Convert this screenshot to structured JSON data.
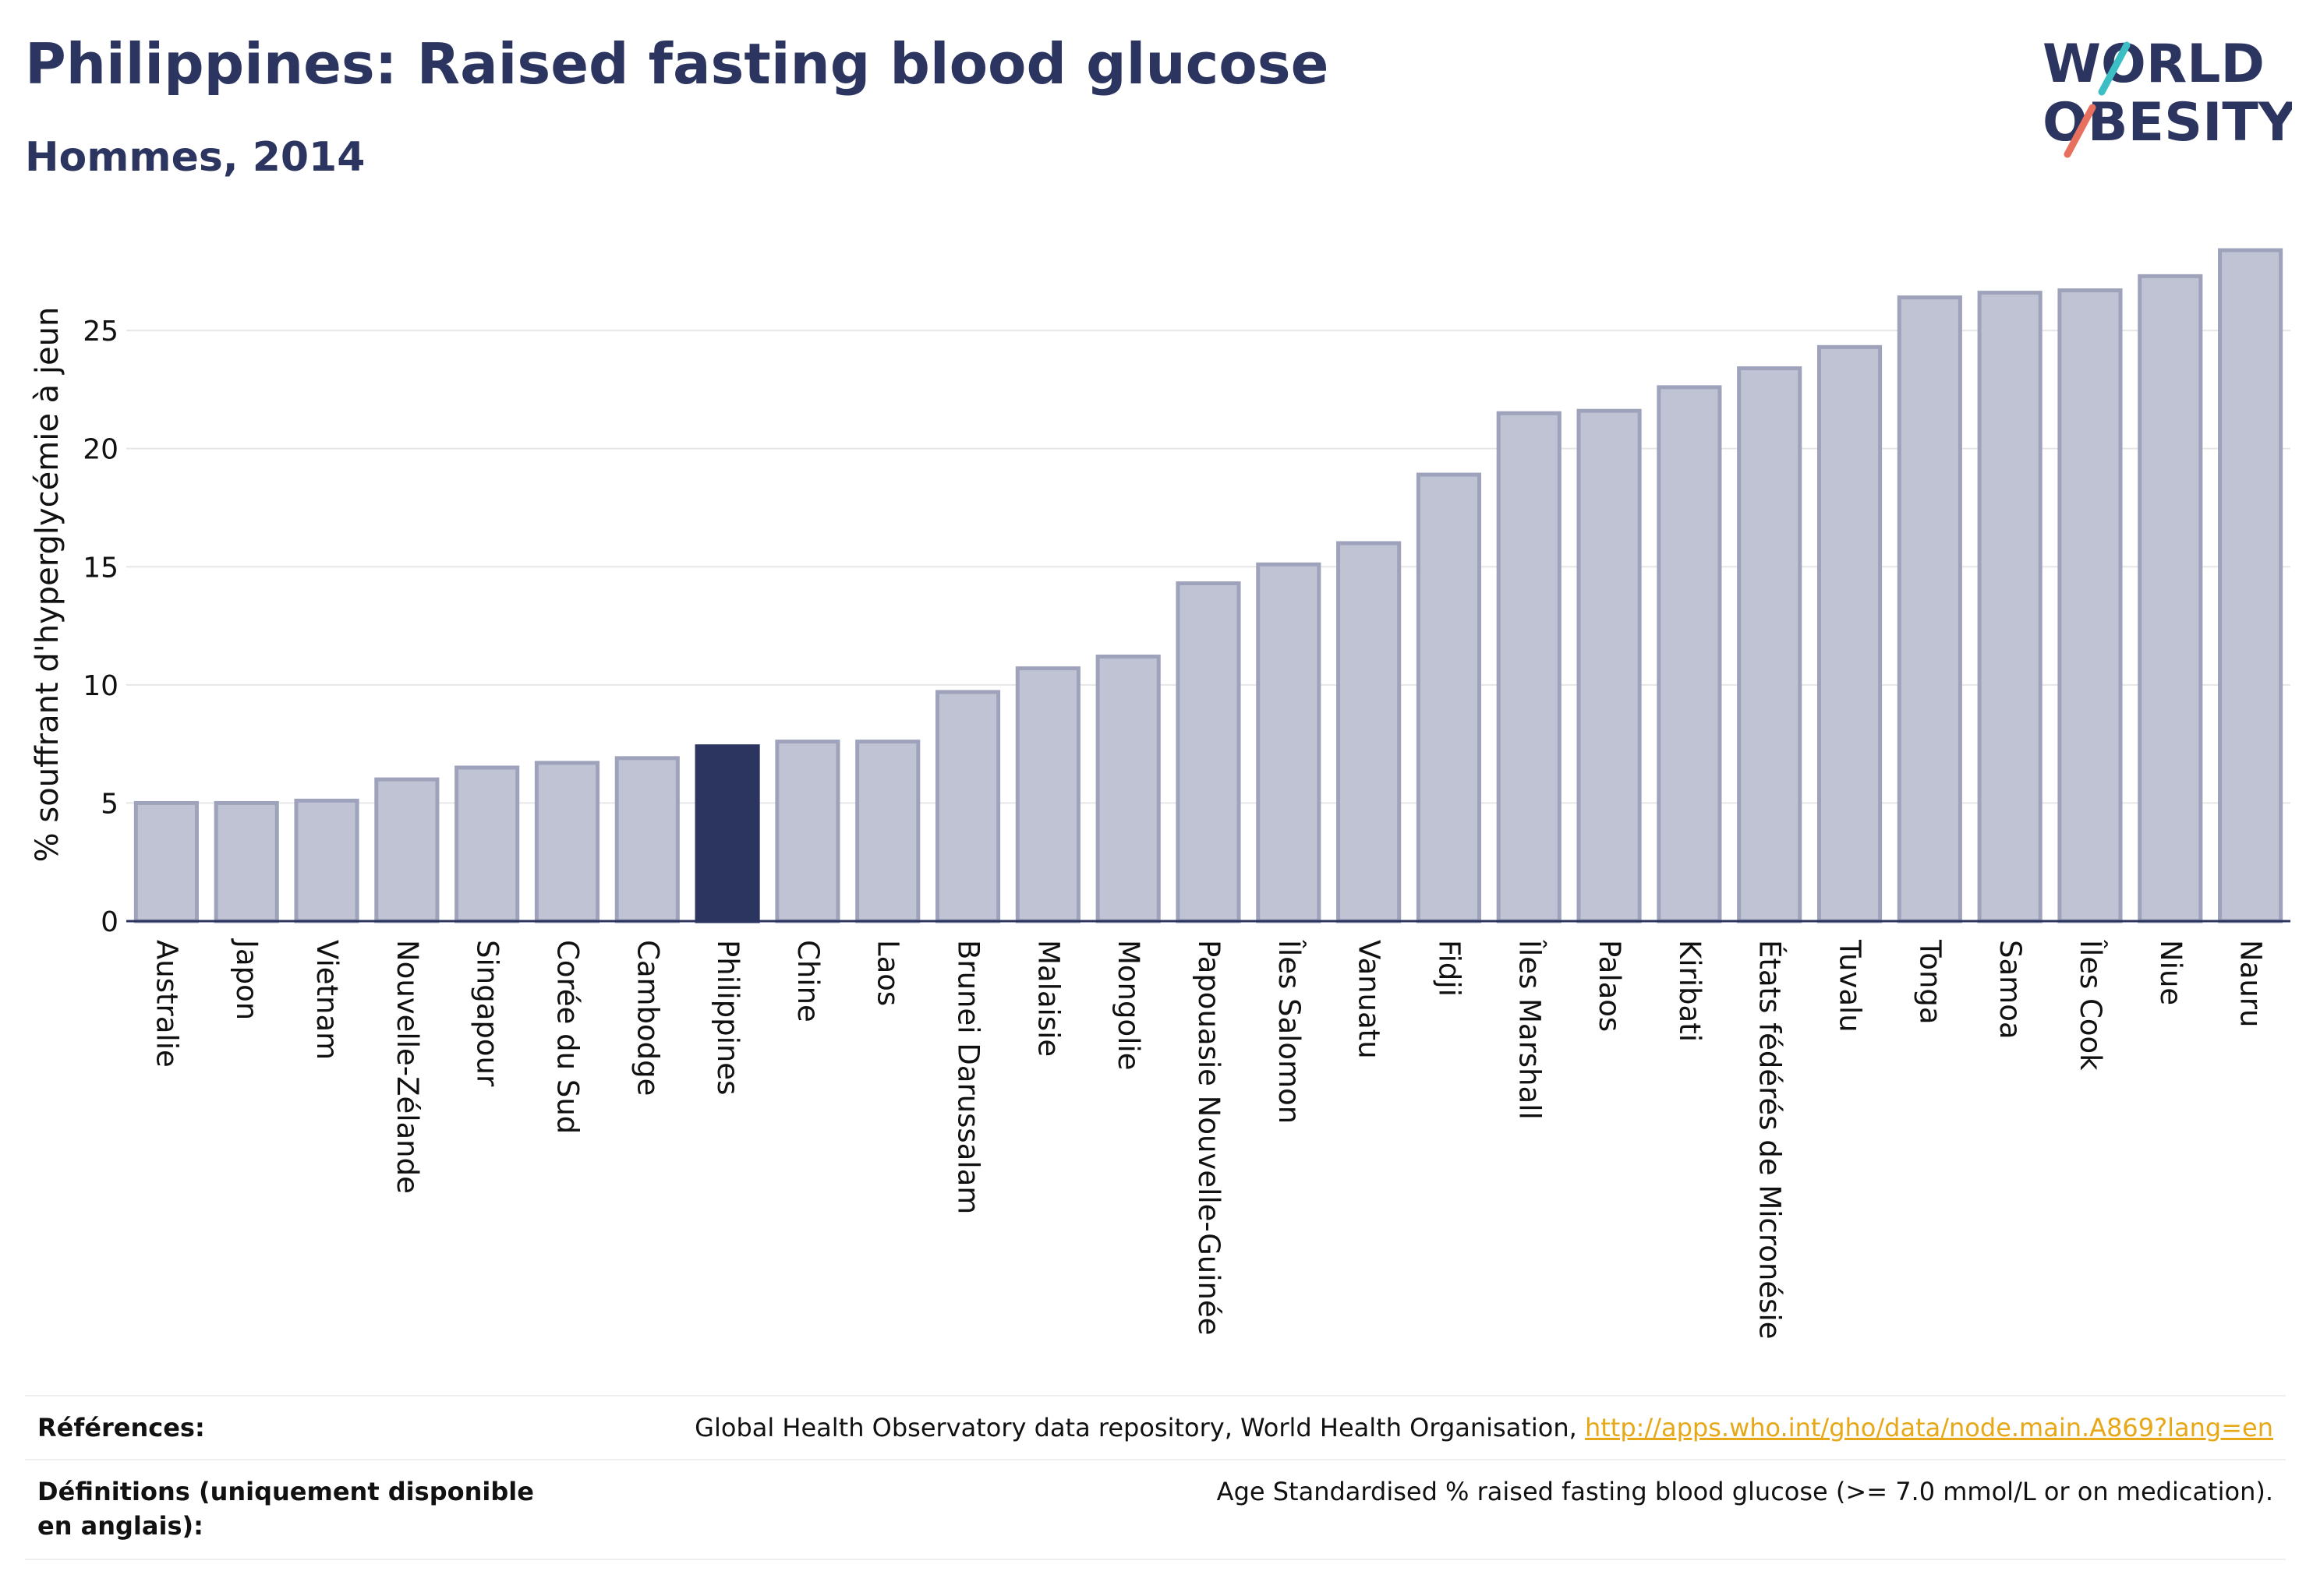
{
  "title": "Philippines: Raised fasting blood glucose",
  "subtitle": "Hommes, 2014",
  "logo": {
    "line1": "WORLD",
    "line2": "OBESITY"
  },
  "colors": {
    "bar": "#bfc3d3",
    "bar_stroke": "#9ea3bb",
    "highlight": "#2b3560",
    "grid": "#e6e6e6",
    "axis": "#2b3560"
  },
  "chart_data": {
    "type": "bar",
    "ylabel": "% souffrant d'hyperglycémie à jeun",
    "ylim": [
      0,
      28.5
    ],
    "yticks": [
      0,
      5,
      10,
      15,
      20,
      25
    ],
    "grid": true,
    "highlight": "Philippines",
    "categories": [
      "Australie",
      "Japon",
      "Vietnam",
      "Nouvelle-Zélande",
      "Singapour",
      "Corée du Sud",
      "Cambodge",
      "Philippines",
      "Chine",
      "Laos",
      "Brunei Darussalam",
      "Malaisie",
      "Mongolie",
      "Papouasie Nouvelle-Guinée",
      "Îles Salomon",
      "Vanuatu",
      "Fidji",
      "Îles Marshall",
      "Palaos",
      "Kiribati",
      "États fédérés de Micronésie",
      "Tuvalu",
      "Tonga",
      "Samoa",
      "Îles Cook",
      "Niue",
      "Nauru"
    ],
    "values": [
      5.0,
      5.0,
      5.1,
      6.0,
      6.5,
      6.7,
      6.9,
      7.4,
      7.6,
      7.6,
      9.7,
      10.7,
      11.2,
      14.3,
      15.1,
      16.0,
      18.9,
      21.5,
      21.6,
      22.6,
      23.4,
      24.3,
      26.4,
      26.6,
      26.7,
      27.3,
      28.4
    ]
  },
  "footer": {
    "references_label": "Références:",
    "references_text": "Global Health Observatory data repository, World Health Organisation, ",
    "references_link": "http://apps.who.int/gho/data/node.main.A869?lang=en",
    "definitions_label": "Définitions (uniquement disponible en anglais):",
    "definitions_text": "Age Standardised % raised fasting blood glucose (>= 7.0 mmol/L or on medication)."
  }
}
